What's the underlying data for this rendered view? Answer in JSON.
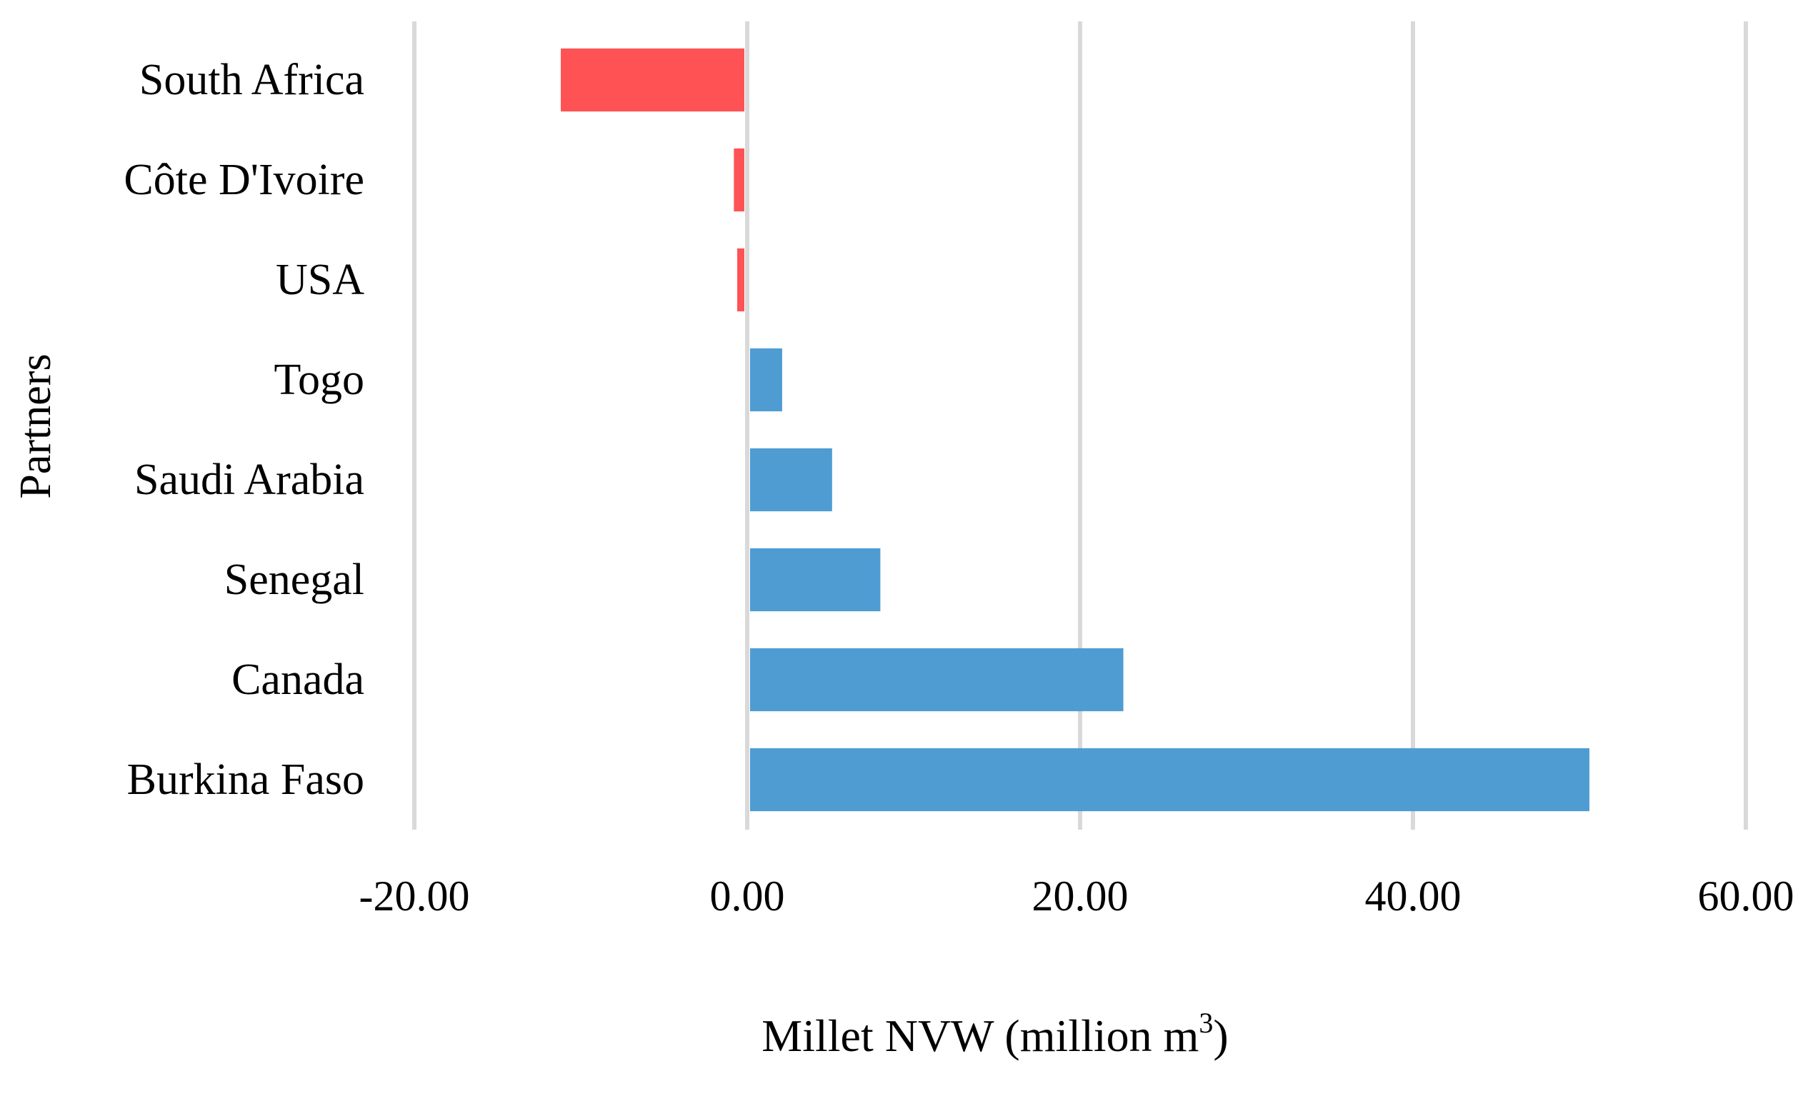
{
  "chart_data": {
    "type": "bar",
    "orientation": "horizontal",
    "title": "",
    "xlabel": "Millet NVW (million m",
    "xlabel_superscript": "3",
    "xlabel_suffix": ")",
    "ylabel": "Partners",
    "xlim": [
      -20,
      60
    ],
    "xticks": [
      -20,
      0,
      20,
      40,
      60
    ],
    "xtick_labels": [
      "-20.00",
      "0.00",
      "20.00",
      "40.00",
      "60.00"
    ],
    "grid": "vertical",
    "legend": "none",
    "categories": [
      "South Africa",
      "Côte D'Ivoire",
      "USA",
      "Togo",
      "Saudi Arabia",
      "Senegal",
      "Canada",
      "Burkina Faso"
    ],
    "values": [
      -11.2,
      -0.8,
      -0.6,
      2.1,
      5.1,
      8.0,
      22.6,
      50.6
    ],
    "colors": {
      "negative": "#ff4f51",
      "positive": "#4b9ad2",
      "grid": "#d9d9d9"
    }
  }
}
